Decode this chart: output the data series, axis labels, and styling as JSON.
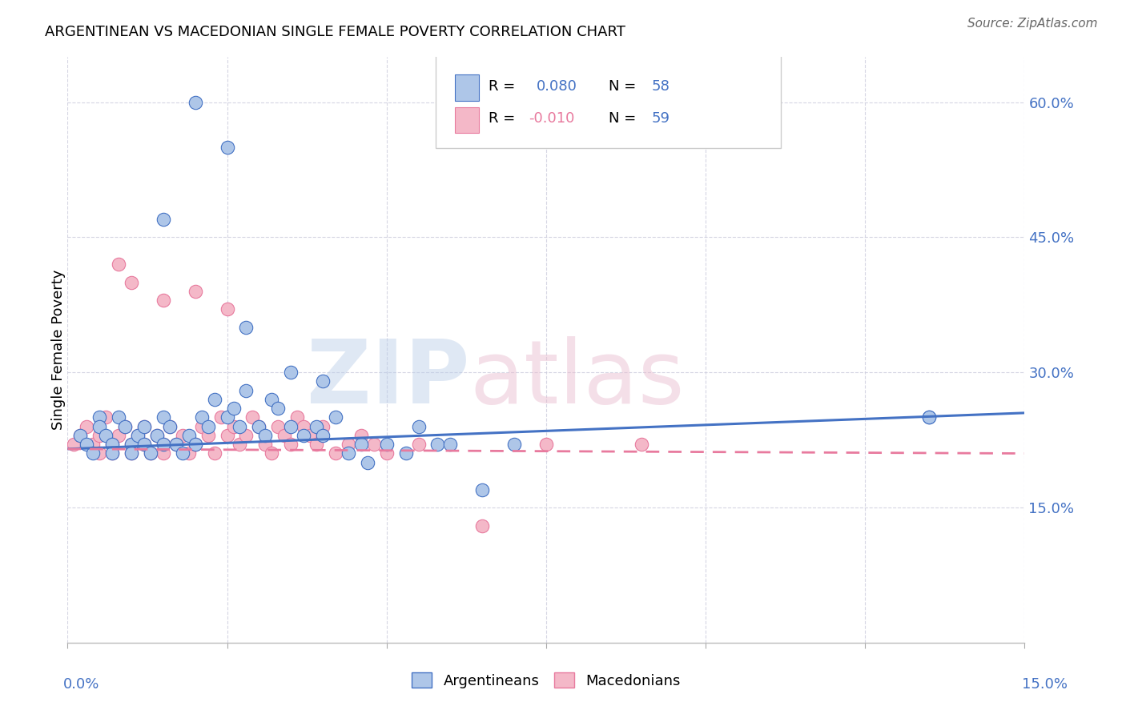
{
  "title": "ARGENTINEAN VS MACEDONIAN SINGLE FEMALE POVERTY CORRELATION CHART",
  "source": "Source: ZipAtlas.com",
  "ylabel": "Single Female Poverty",
  "legend_arg_R": 0.08,
  "legend_arg_N": 58,
  "legend_mac_R": -0.01,
  "legend_mac_N": 59,
  "x_min": 0.0,
  "x_max": 0.15,
  "y_min": 0.0,
  "y_max": 0.65,
  "yticks": [
    0.15,
    0.3,
    0.45,
    0.6
  ],
  "ytick_labels": [
    "15.0%",
    "30.0%",
    "45.0%",
    "60.0%"
  ],
  "color_arg_fill": "#aec6e8",
  "color_arg_edge": "#4472c4",
  "color_mac_fill": "#f4b8c8",
  "color_mac_edge": "#e87a9e",
  "color_arg_line": "#4472c4",
  "color_mac_line": "#e87a9e",
  "color_blue_text": "#4472c4",
  "color_pink_text": "#e87a9e",
  "arg_x": [
    0.002,
    0.003,
    0.004,
    0.005,
    0.005,
    0.006,
    0.007,
    0.007,
    0.008,
    0.009,
    0.01,
    0.01,
    0.011,
    0.012,
    0.012,
    0.013,
    0.014,
    0.015,
    0.015,
    0.016,
    0.017,
    0.018,
    0.019,
    0.02,
    0.021,
    0.022,
    0.023,
    0.025,
    0.026,
    0.027,
    0.028,
    0.03,
    0.031,
    0.032,
    0.033,
    0.035,
    0.037,
    0.039,
    0.04,
    0.042,
    0.044,
    0.047,
    0.05,
    0.053,
    0.058,
    0.065,
    0.07,
    0.046,
    0.028,
    0.035,
    0.04,
    0.055,
    0.06,
    0.025,
    0.02,
    0.015,
    0.135,
    0.135
  ],
  "arg_y": [
    0.23,
    0.22,
    0.21,
    0.25,
    0.24,
    0.23,
    0.22,
    0.21,
    0.25,
    0.24,
    0.22,
    0.21,
    0.23,
    0.22,
    0.24,
    0.21,
    0.23,
    0.22,
    0.25,
    0.24,
    0.22,
    0.21,
    0.23,
    0.22,
    0.25,
    0.24,
    0.27,
    0.25,
    0.26,
    0.24,
    0.28,
    0.24,
    0.23,
    0.27,
    0.26,
    0.24,
    0.23,
    0.24,
    0.23,
    0.25,
    0.21,
    0.2,
    0.22,
    0.21,
    0.22,
    0.17,
    0.22,
    0.22,
    0.35,
    0.3,
    0.29,
    0.24,
    0.22,
    0.55,
    0.6,
    0.47,
    0.25,
    0.25
  ],
  "mac_x": [
    0.001,
    0.002,
    0.003,
    0.004,
    0.005,
    0.005,
    0.006,
    0.007,
    0.007,
    0.008,
    0.009,
    0.01,
    0.01,
    0.011,
    0.012,
    0.012,
    0.013,
    0.014,
    0.015,
    0.015,
    0.016,
    0.017,
    0.018,
    0.019,
    0.02,
    0.021,
    0.022,
    0.023,
    0.024,
    0.025,
    0.026,
    0.027,
    0.028,
    0.029,
    0.03,
    0.031,
    0.032,
    0.033,
    0.034,
    0.035,
    0.036,
    0.037,
    0.038,
    0.039,
    0.04,
    0.042,
    0.044,
    0.046,
    0.048,
    0.05,
    0.055,
    0.065,
    0.075,
    0.09,
    0.025,
    0.015,
    0.02,
    0.01,
    0.008
  ],
  "mac_y": [
    0.22,
    0.23,
    0.24,
    0.22,
    0.23,
    0.21,
    0.25,
    0.22,
    0.21,
    0.23,
    0.24,
    0.22,
    0.21,
    0.23,
    0.22,
    0.24,
    0.21,
    0.23,
    0.22,
    0.21,
    0.24,
    0.22,
    0.23,
    0.21,
    0.22,
    0.24,
    0.23,
    0.21,
    0.25,
    0.23,
    0.24,
    0.22,
    0.23,
    0.25,
    0.24,
    0.22,
    0.21,
    0.24,
    0.23,
    0.22,
    0.25,
    0.24,
    0.23,
    0.22,
    0.24,
    0.21,
    0.22,
    0.23,
    0.22,
    0.21,
    0.22,
    0.13,
    0.22,
    0.22,
    0.37,
    0.38,
    0.39,
    0.4,
    0.42
  ]
}
